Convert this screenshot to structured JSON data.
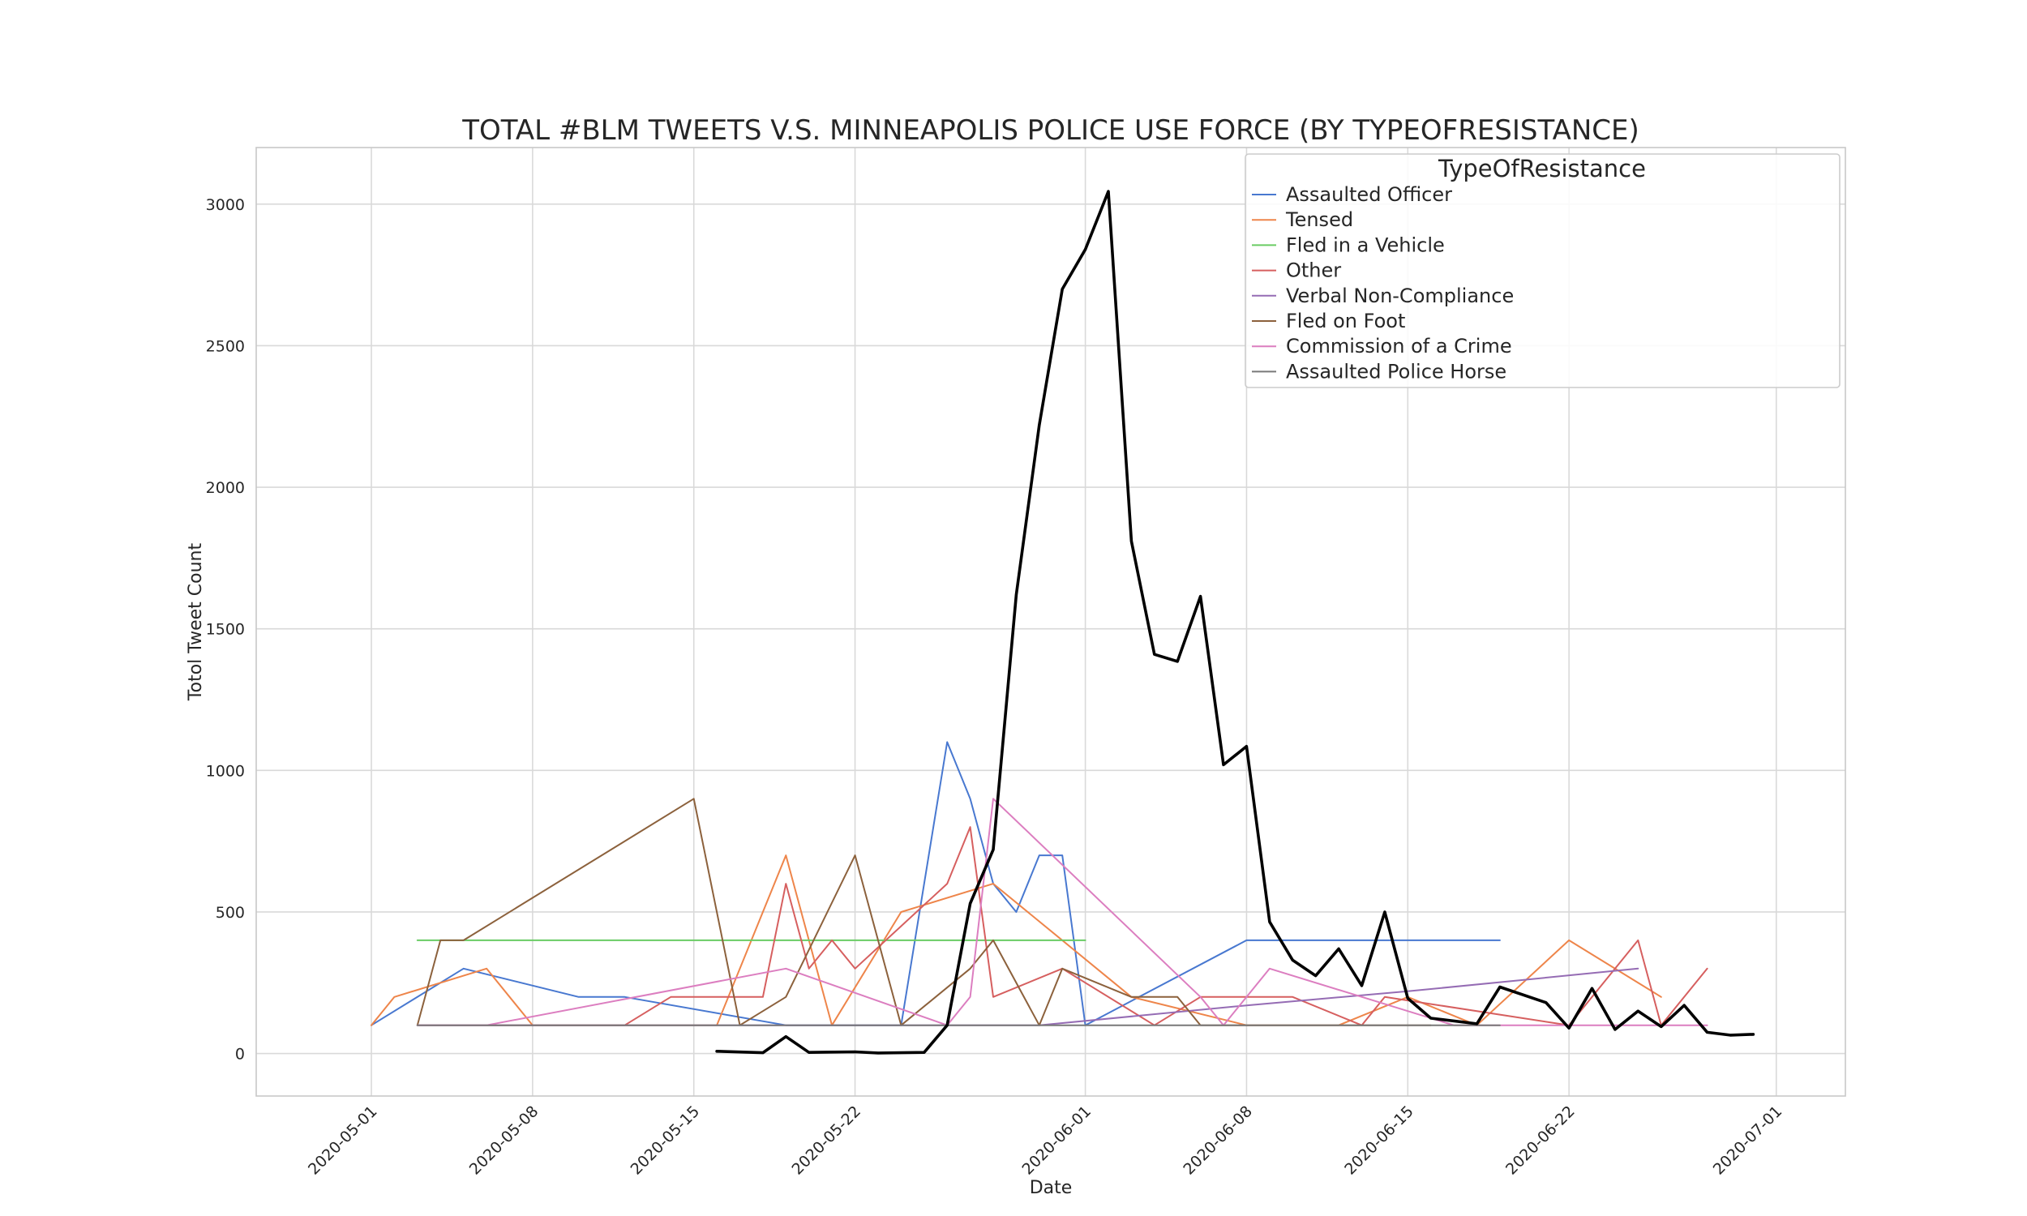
{
  "chart_data": {
    "type": "line",
    "title": "TOTAL #BLM TWEETS V.S. MINNEAPOLIS POLICE USE FORCE (BY TYPEOFRESISTANCE)",
    "xlabel": "Date",
    "ylabel": "Totol Tweet Count",
    "xlim": [
      "2020-04-26",
      "2020-07-04"
    ],
    "ylim": [
      -150,
      3200
    ],
    "x_ticks": [
      "2020-05-01",
      "2020-05-08",
      "2020-05-15",
      "2020-05-22",
      "2020-06-01",
      "2020-06-08",
      "2020-06-15",
      "2020-06-22",
      "2020-07-01"
    ],
    "y_ticks": [
      0,
      500,
      1000,
      1500,
      2000,
      2500,
      3000
    ],
    "grid": true,
    "legend": {
      "title": "TypeOfResistance",
      "position": "top-right"
    },
    "series": [
      {
        "name": "Assaulted Officer",
        "color": "#4878d0",
        "points": [
          [
            "2020-05-01",
            100
          ],
          [
            "2020-05-05",
            300
          ],
          [
            "2020-05-10",
            200
          ],
          [
            "2020-05-12",
            200
          ],
          [
            "2020-05-19",
            100
          ],
          [
            "2020-05-24",
            100
          ],
          [
            "2020-05-26",
            1100
          ],
          [
            "2020-05-27",
            900
          ],
          [
            "2020-05-28",
            600
          ],
          [
            "2020-05-29",
            500
          ],
          [
            "2020-05-30",
            700
          ],
          [
            "2020-05-31",
            700
          ],
          [
            "2020-06-01",
            100
          ],
          [
            "2020-06-08",
            400
          ],
          [
            "2020-06-19",
            400
          ]
        ]
      },
      {
        "name": "Tensed",
        "color": "#ee854a",
        "points": [
          [
            "2020-05-01",
            100
          ],
          [
            "2020-05-02",
            200
          ],
          [
            "2020-05-06",
            300
          ],
          [
            "2020-05-08",
            100
          ],
          [
            "2020-05-16",
            100
          ],
          [
            "2020-05-19",
            700
          ],
          [
            "2020-05-21",
            100
          ],
          [
            "2020-05-24",
            500
          ],
          [
            "2020-05-28",
            600
          ],
          [
            "2020-06-03",
            200
          ],
          [
            "2020-06-08",
            100
          ],
          [
            "2020-06-12",
            100
          ],
          [
            "2020-06-15",
            200
          ],
          [
            "2020-06-18",
            100
          ],
          [
            "2020-06-22",
            400
          ],
          [
            "2020-06-26",
            200
          ]
        ]
      },
      {
        "name": "Fled in a Vehicle",
        "color": "#6acc64",
        "points": [
          [
            "2020-05-03",
            400
          ],
          [
            "2020-06-01",
            400
          ]
        ]
      },
      {
        "name": "Other",
        "color": "#d65f5f",
        "points": [
          [
            "2020-05-03",
            100
          ],
          [
            "2020-05-12",
            100
          ],
          [
            "2020-05-14",
            200
          ],
          [
            "2020-05-18",
            200
          ],
          [
            "2020-05-19",
            600
          ],
          [
            "2020-05-20",
            300
          ],
          [
            "2020-05-21",
            400
          ],
          [
            "2020-05-22",
            300
          ],
          [
            "2020-05-26",
            600
          ],
          [
            "2020-05-27",
            800
          ],
          [
            "2020-05-28",
            200
          ],
          [
            "2020-05-31",
            300
          ],
          [
            "2020-06-04",
            100
          ],
          [
            "2020-06-06",
            200
          ],
          [
            "2020-06-10",
            200
          ],
          [
            "2020-06-13",
            100
          ],
          [
            "2020-06-14",
            200
          ],
          [
            "2020-06-22",
            100
          ],
          [
            "2020-06-25",
            400
          ],
          [
            "2020-06-26",
            100
          ],
          [
            "2020-06-28",
            300
          ]
        ]
      },
      {
        "name": "Verbal Non-Compliance",
        "color": "#956cb4",
        "points": [
          [
            "2020-05-03",
            100
          ],
          [
            "2020-05-30",
            100
          ],
          [
            "2020-06-08",
            170
          ],
          [
            "2020-06-15",
            220
          ],
          [
            "2020-06-25",
            300
          ]
        ]
      },
      {
        "name": "Fled on Foot",
        "color": "#8c613c",
        "points": [
          [
            "2020-05-03",
            100
          ],
          [
            "2020-05-04",
            400
          ],
          [
            "2020-05-05",
            400
          ],
          [
            "2020-05-15",
            900
          ],
          [
            "2020-05-17",
            100
          ],
          [
            "2020-05-19",
            200
          ],
          [
            "2020-05-22",
            700
          ],
          [
            "2020-05-24",
            100
          ],
          [
            "2020-05-27",
            300
          ],
          [
            "2020-05-28",
            400
          ],
          [
            "2020-05-30",
            100
          ],
          [
            "2020-05-31",
            300
          ],
          [
            "2020-06-03",
            200
          ],
          [
            "2020-06-05",
            200
          ],
          [
            "2020-06-06",
            100
          ],
          [
            "2020-06-16",
            100
          ]
        ]
      },
      {
        "name": "Commission of a Crime",
        "color": "#dc7ec0",
        "points": [
          [
            "2020-05-03",
            100
          ],
          [
            "2020-05-06",
            100
          ],
          [
            "2020-05-19",
            300
          ],
          [
            "2020-05-26",
            100
          ],
          [
            "2020-05-27",
            200
          ],
          [
            "2020-05-28",
            900
          ],
          [
            "2020-06-06",
            200
          ],
          [
            "2020-06-07",
            100
          ],
          [
            "2020-06-09",
            300
          ],
          [
            "2020-06-17",
            100
          ],
          [
            "2020-06-28",
            100
          ]
        ]
      },
      {
        "name": "Assaulted Police Horse",
        "color": "#797979",
        "points": [
          [
            "2020-05-03",
            100
          ],
          [
            "2020-06-19",
            100
          ]
        ]
      },
      {
        "name": "",
        "color": "#000000",
        "bold": true,
        "points": [
          [
            "2020-05-16",
            8
          ],
          [
            "2020-05-18",
            3
          ],
          [
            "2020-05-19",
            60
          ],
          [
            "2020-05-20",
            4
          ],
          [
            "2020-05-22",
            6
          ],
          [
            "2020-05-23",
            2
          ],
          [
            "2020-05-25",
            4
          ],
          [
            "2020-05-26",
            100
          ],
          [
            "2020-05-27",
            530
          ],
          [
            "2020-05-28",
            720
          ],
          [
            "2020-05-29",
            1620
          ],
          [
            "2020-05-30",
            2220
          ],
          [
            "2020-05-31",
            2700
          ],
          [
            "2020-06-01",
            2840
          ],
          [
            "2020-06-02",
            3045
          ],
          [
            "2020-06-03",
            1810
          ],
          [
            "2020-06-04",
            1410
          ],
          [
            "2020-06-05",
            1385
          ],
          [
            "2020-06-06",
            1615
          ],
          [
            "2020-06-07",
            1020
          ],
          [
            "2020-06-08",
            1085
          ],
          [
            "2020-06-09",
            465
          ],
          [
            "2020-06-10",
            330
          ],
          [
            "2020-06-11",
            275
          ],
          [
            "2020-06-12",
            370
          ],
          [
            "2020-06-13",
            240
          ],
          [
            "2020-06-14",
            500
          ],
          [
            "2020-06-15",
            195
          ],
          [
            "2020-06-16",
            125
          ],
          [
            "2020-06-18",
            105
          ],
          [
            "2020-06-19",
            235
          ],
          [
            "2020-06-21",
            180
          ],
          [
            "2020-06-22",
            90
          ],
          [
            "2020-06-23",
            230
          ],
          [
            "2020-06-24",
            85
          ],
          [
            "2020-06-25",
            150
          ],
          [
            "2020-06-26",
            95
          ],
          [
            "2020-06-27",
            170
          ],
          [
            "2020-06-28",
            75
          ],
          [
            "2020-06-29",
            65
          ],
          [
            "2020-06-30",
            68
          ]
        ]
      }
    ]
  }
}
